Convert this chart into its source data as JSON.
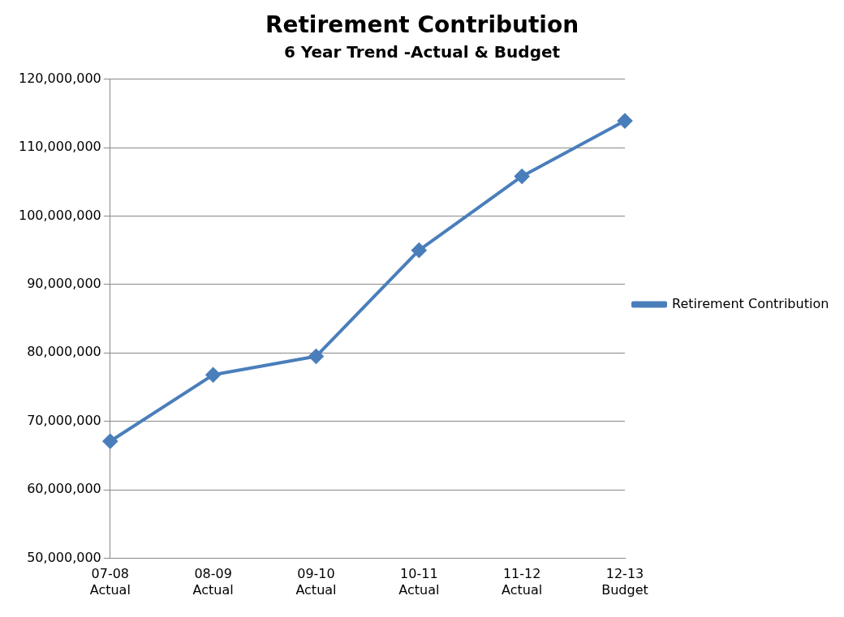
{
  "chart_data": {
    "type": "line",
    "title": "Retirement Contribution",
    "subtitle": "6 Year Trend -Actual & Budget",
    "categories": [
      "07-08 Actual",
      "08-09 Actual",
      "09-10 Actual",
      "10-11 Actual",
      "11-12 Actual",
      "12-13 Budget"
    ],
    "series": [
      {
        "name": "Retirement Contribution",
        "color": "#4a7ebb",
        "values": [
          67100000,
          76800000,
          79500000,
          95000000,
          105800000,
          113900000
        ]
      }
    ],
    "ylim": [
      50000000,
      120000000
    ],
    "yticks": [
      {
        "value": 50000000,
        "label": "50,000,000"
      },
      {
        "value": 60000000,
        "label": "60,000,000"
      },
      {
        "value": 70000000,
        "label": "70,000,000"
      },
      {
        "value": 80000000,
        "label": "80,000,000"
      },
      {
        "value": 90000000,
        "label": "90,000,000"
      },
      {
        "value": 100000000,
        "label": "100,000,000"
      },
      {
        "value": 110000000,
        "label": "110,000,000"
      },
      {
        "value": 120000000,
        "label": "120,000,000"
      }
    ],
    "grid": "y",
    "legend": "right",
    "marker": "diamond",
    "line_style": "solid"
  }
}
